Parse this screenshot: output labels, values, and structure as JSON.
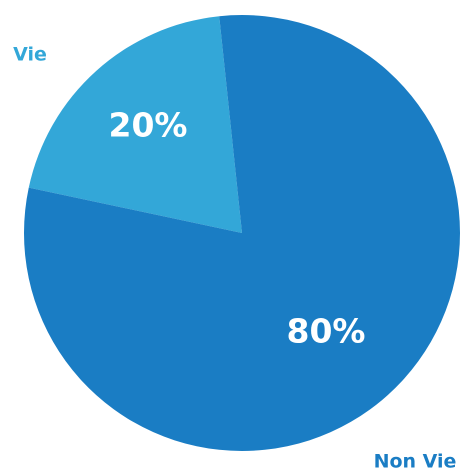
{
  "chart_data": {
    "type": "pie",
    "categories": [
      "Vie",
      "Non Vie"
    ],
    "values": [
      20,
      80
    ],
    "value_labels": [
      "20%",
      "80%"
    ],
    "colors": [
      "#33a7d8",
      "#1a7dc4"
    ]
  }
}
